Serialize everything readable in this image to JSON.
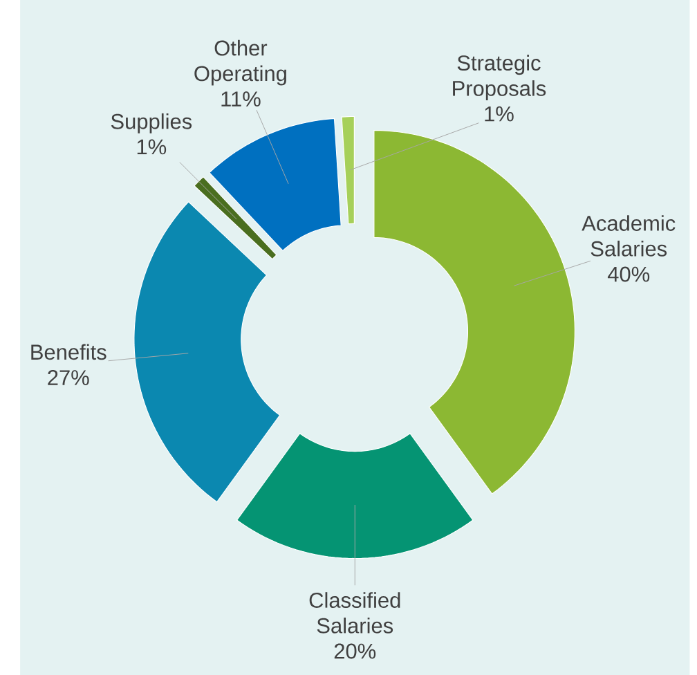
{
  "chart_data": {
    "type": "donut",
    "categories": [
      "Academic Salaries",
      "Classified Salaries",
      "Benefits",
      "Supplies",
      "Other Operating",
      "Strategic Proposals"
    ],
    "values": [
      40,
      20,
      27,
      1,
      11,
      1
    ],
    "value_labels": [
      "40%",
      "20%",
      "27%",
      "1%",
      "11%",
      "1%"
    ],
    "colors": [
      "#8cb833",
      "#059473",
      "#0b88b0",
      "#4a6e1f",
      "#0070c0",
      "#a6d05a"
    ]
  }
}
